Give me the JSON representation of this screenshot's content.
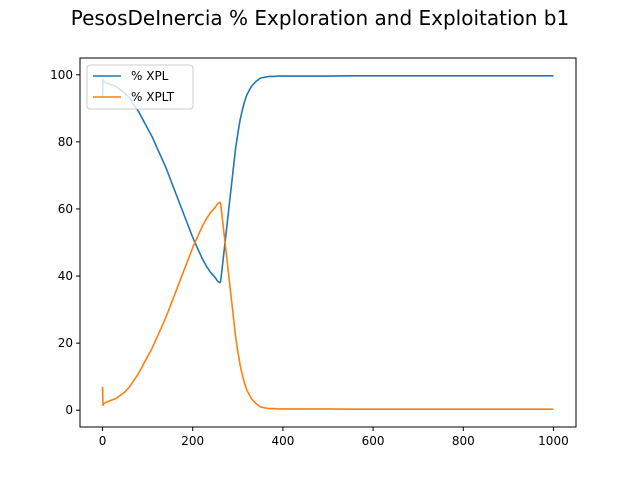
{
  "chart_data": {
    "type": "line",
    "title": "PesosDeInercia % Exploration and Exploitation b1",
    "xlabel": "",
    "ylabel": "",
    "xlim": [
      -50,
      1050
    ],
    "ylim": [
      -5,
      105
    ],
    "xticks": [
      0,
      200,
      400,
      600,
      800,
      1000
    ],
    "yticks": [
      0,
      20,
      40,
      60,
      80,
      100
    ],
    "grid": false,
    "legend_position": "top-left",
    "series": [
      {
        "name": "% XPL",
        "color": "#1f77b4",
        "x": [
          0,
          1,
          3,
          10,
          20,
          30,
          40,
          50,
          60,
          70,
          80,
          90,
          100,
          110,
          120,
          130,
          140,
          150,
          160,
          170,
          180,
          190,
          200,
          210,
          220,
          230,
          240,
          250,
          255,
          260,
          262,
          265,
          270,
          275,
          280,
          285,
          290,
          295,
          300,
          305,
          310,
          315,
          320,
          330,
          340,
          350,
          360,
          370,
          380,
          390,
          400,
          450,
          500,
          550,
          600,
          700,
          800,
          900,
          1000
        ],
        "y": [
          93,
          98.5,
          98,
          97.5,
          97,
          96.5,
          95.5,
          94.5,
          93,
          91,
          89,
          86.5,
          84,
          81.5,
          78.5,
          75.5,
          72.5,
          69,
          65.5,
          62,
          58.5,
          55,
          51.5,
          48.5,
          45.5,
          43,
          41,
          39.5,
          38.5,
          38,
          38.5,
          42,
          48,
          54,
          60,
          66,
          72,
          78,
          82.5,
          86.5,
          89.5,
          92,
          94,
          96.5,
          98,
          99,
          99.3,
          99.5,
          99.5,
          99.6,
          99.6,
          99.6,
          99.6,
          99.7,
          99.7,
          99.7,
          99.7,
          99.7,
          99.7
        ]
      },
      {
        "name": "% XPLT",
        "color": "#ff7f0e",
        "x": [
          0,
          1,
          3,
          10,
          20,
          30,
          40,
          50,
          60,
          70,
          80,
          90,
          100,
          110,
          120,
          130,
          140,
          150,
          160,
          170,
          180,
          190,
          200,
          210,
          220,
          230,
          240,
          250,
          255,
          260,
          262,
          265,
          270,
          275,
          280,
          285,
          290,
          295,
          300,
          305,
          310,
          315,
          320,
          330,
          340,
          350,
          360,
          370,
          380,
          390,
          400,
          450,
          500,
          550,
          600,
          700,
          800,
          900,
          1000
        ],
        "y": [
          7,
          1.5,
          2,
          2.5,
          3,
          3.5,
          4.5,
          5.5,
          7,
          9,
          11,
          13.5,
          16,
          18.5,
          21.5,
          24.5,
          27.5,
          31,
          34.5,
          38,
          41.5,
          45,
          48.5,
          51.5,
          54.5,
          57,
          59,
          60.5,
          61.5,
          62,
          61.5,
          58,
          52,
          46,
          40,
          34,
          28,
          22,
          17.5,
          13.5,
          10.5,
          8,
          6,
          3.5,
          2,
          1,
          0.7,
          0.5,
          0.5,
          0.4,
          0.4,
          0.4,
          0.4,
          0.3,
          0.3,
          0.3,
          0.3,
          0.3,
          0.3
        ]
      }
    ]
  }
}
